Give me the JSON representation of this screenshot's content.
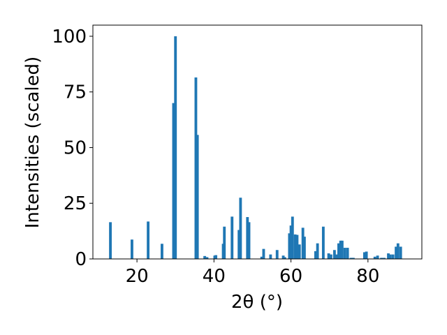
{
  "chart_data": {
    "type": "bar",
    "xlabel": "2θ (°)",
    "ylabel": "Intensities (scaled)",
    "color": "#1f77b4",
    "x": [
      13.1,
      18.7,
      22.9,
      26.5,
      29.5,
      30.0,
      35.3,
      35.7,
      37.6,
      38.2,
      40.2,
      40.5,
      42.4,
      42.7,
      44.7,
      46.5,
      46.9,
      48.7,
      49.1,
      52.4,
      52.9,
      54.7,
      56.4,
      58.0,
      58.4,
      59.6,
      60.0,
      60.4,
      61.1,
      61.6,
      62.2,
      63.1,
      63.5,
      66.4,
      66.9,
      68.4,
      69.8,
      70.4,
      71.3,
      71.8,
      72.4,
      72.9,
      73.3,
      74.0,
      74.7,
      75.6,
      76.2,
      79.1,
      79.6,
      81.8,
      82.5,
      83.5,
      84.2,
      85.3,
      85.8,
      86.5,
      87.3,
      87.8,
      88.5
    ],
    "values": [
      16.5,
      8.7,
      16.8,
      6.8,
      70,
      100,
      81.5,
      55.7,
      1.3,
      0.8,
      1.5,
      1.7,
      6.8,
      14.5,
      19,
      13,
      27.5,
      18.8,
      16.5,
      1.0,
      4.5,
      2,
      4,
      1.5,
      0.8,
      11.5,
      15,
      19,
      11,
      10.8,
      6.5,
      14,
      10,
      3.5,
      7,
      14.5,
      2.5,
      2,
      4,
      2,
      7,
      8.2,
      8.2,
      5,
      5,
      0.5,
      0.5,
      3,
      3.3,
      1,
      1.5,
      0.5,
      0.5,
      2.5,
      2,
      2,
      5.5,
      7,
      5.5
    ],
    "xlim": [
      8.55,
      94.0
    ],
    "ylim": [
      0,
      105
    ],
    "xticks": [
      20,
      40,
      60,
      80
    ],
    "yticks": [
      0,
      25,
      50,
      75,
      100
    ]
  }
}
